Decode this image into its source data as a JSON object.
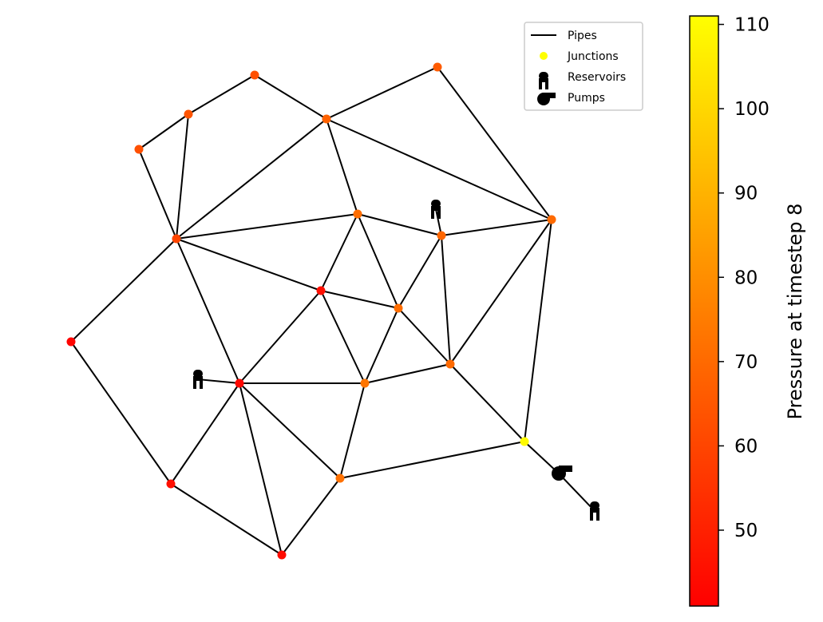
{
  "legend": {
    "pipes": "Pipes",
    "junctions": "Junctions",
    "reservoirs": "Reservoirs",
    "pumps": "Pumps"
  },
  "colorbar": {
    "label": "Pressure at timestep 8",
    "min": 41,
    "max": 111,
    "ticks": [
      "50",
      "60",
      "70",
      "80",
      "90",
      "100",
      "110"
    ],
    "colors": {
      "low": "#ff0000",
      "high": "#ffff00"
    }
  },
  "network": {
    "junctions": [
      {
        "id": "j1",
        "pressure": 66
      },
      {
        "id": "j2",
        "pressure": 63
      },
      {
        "id": "j3",
        "pressure": 64
      },
      {
        "id": "j4",
        "pressure": 63
      },
      {
        "id": "j5",
        "pressure": 68
      },
      {
        "id": "j6",
        "pressure": 60
      },
      {
        "id": "j7",
        "pressure": 71
      },
      {
        "id": "j8",
        "pressure": 69
      },
      {
        "id": "j9",
        "pressure": 70
      },
      {
        "id": "j10",
        "pressure": 45
      },
      {
        "id": "j11",
        "pressure": 71
      },
      {
        "id": "j12",
        "pressure": 42
      },
      {
        "id": "j13",
        "pressure": 43
      },
      {
        "id": "j14",
        "pressure": 73
      },
      {
        "id": "j15",
        "pressure": 70
      },
      {
        "id": "j16",
        "pressure": 110
      },
      {
        "id": "j17",
        "pressure": 45
      },
      {
        "id": "j18",
        "pressure": 72
      },
      {
        "id": "j19",
        "pressure": 44
      }
    ],
    "reservoirs": [
      "r1",
      "r2",
      "r3"
    ],
    "pumps": [
      "p1"
    ]
  }
}
